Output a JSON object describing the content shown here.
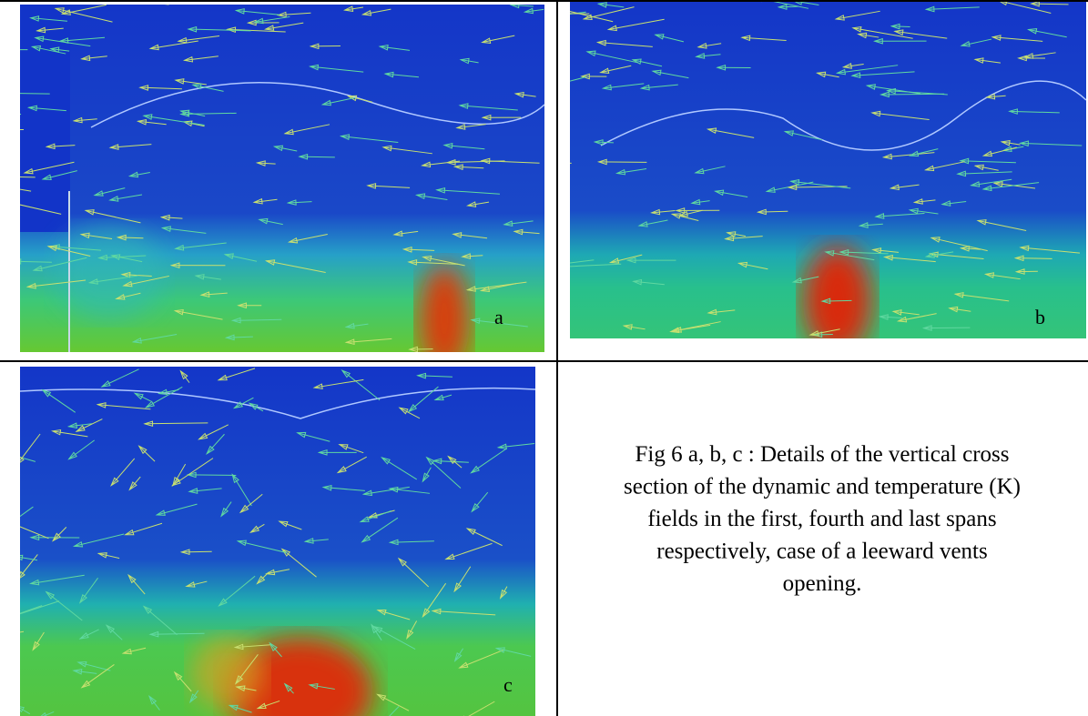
{
  "figure": {
    "panels": [
      {
        "label": "a"
      },
      {
        "label": "b"
      },
      {
        "label": "c"
      }
    ],
    "caption": {
      "lines": [
        "Fig 6 a, b, c : Details of the vertical cross",
        "section of the dynamic and temperature (K)",
        "fields in the first, fourth and last spans",
        "respectively, case of a leeward vents",
        "opening."
      ]
    }
  }
}
